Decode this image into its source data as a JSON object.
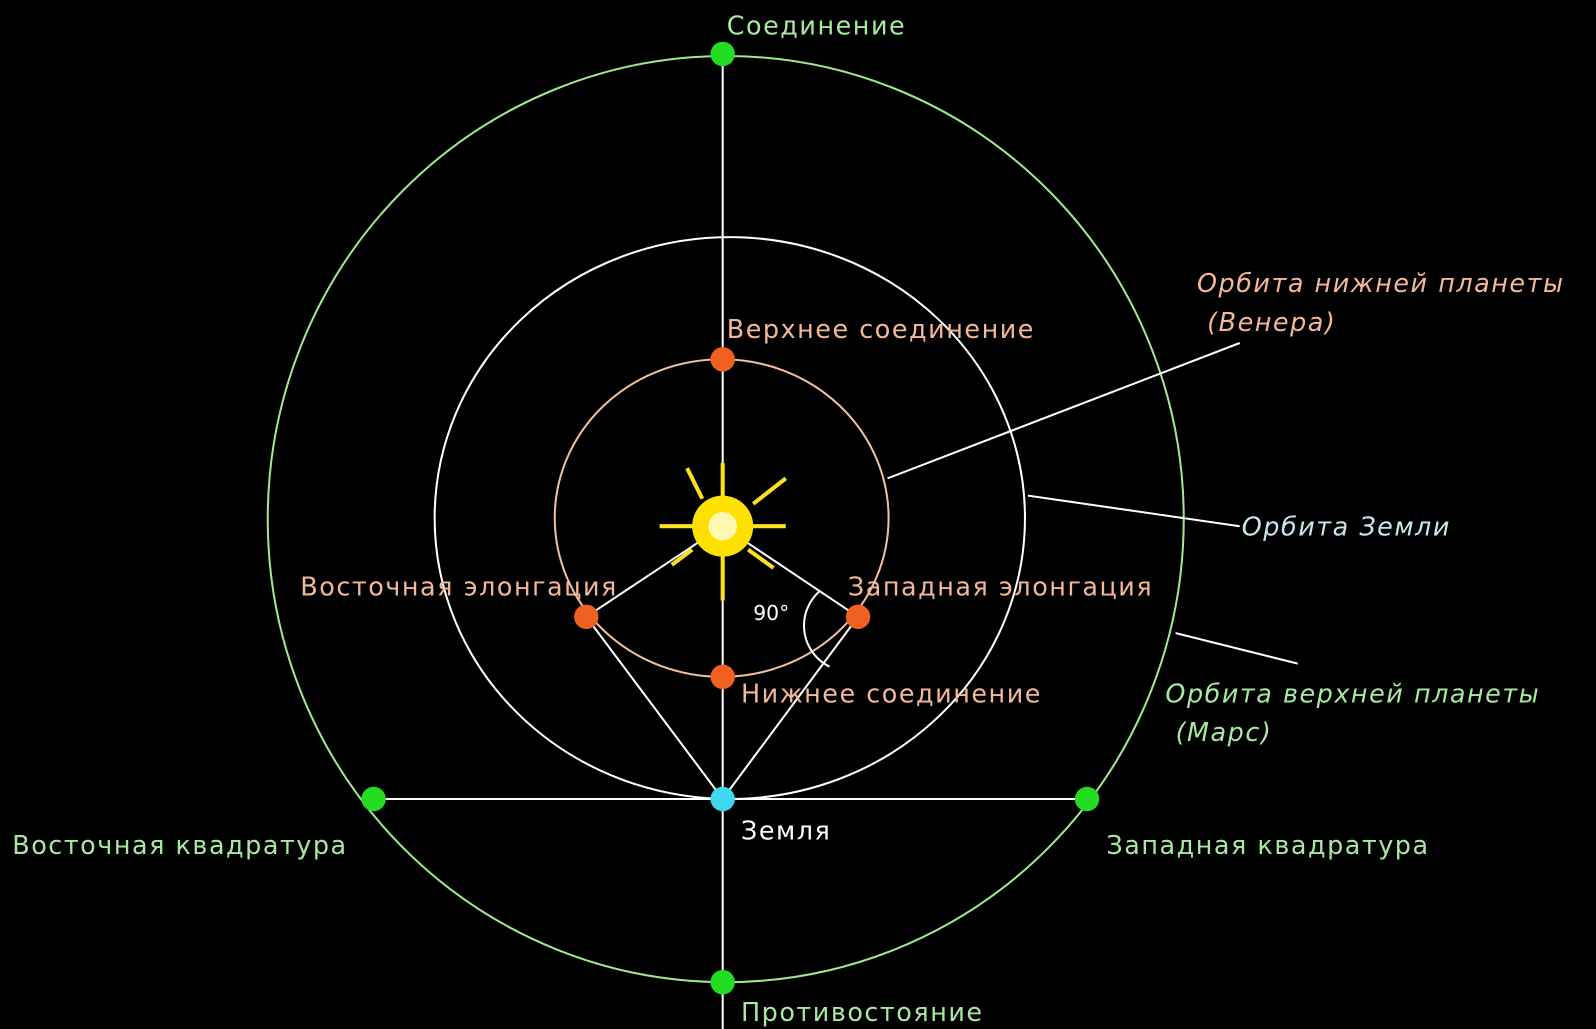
{
  "labels": {
    "conjunction": "Соединение",
    "superior_conjunction": "Верхнее соединение",
    "inferior_conjunction": "Нижнее соединение",
    "eastern_elongation": "Восточная элонгация",
    "western_elongation": "Западная элонгация",
    "earth": "Земля",
    "eastern_quadrature": "Восточная квадратура",
    "western_quadrature": "Западная квадратура",
    "opposition": "Противостояние",
    "angle": "90°"
  },
  "orbits": {
    "inferior_planet": {
      "label": "Орбита нижней планеты",
      "sublabel": "(Венера)"
    },
    "earth": "Орбита Земли",
    "superior_planet": {
      "label": "Орбита верхней планеты",
      "sublabel": "(Марс)"
    }
  }
}
